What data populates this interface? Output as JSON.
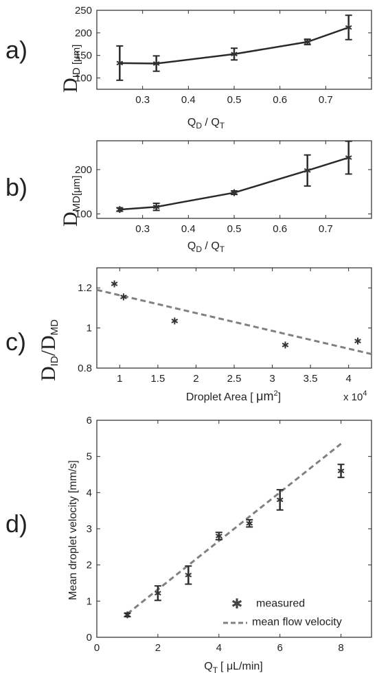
{
  "chart_data": [
    {
      "panel": "a)",
      "type": "line",
      "x": [
        0.25,
        0.33,
        0.5,
        0.66,
        0.75
      ],
      "y": [
        133,
        132,
        153,
        180,
        212
      ],
      "err": [
        38,
        17,
        13,
        6,
        27
      ],
      "xlim": [
        0.2,
        0.8
      ],
      "ylim": [
        75,
        250
      ],
      "xticks": [
        0.3,
        0.4,
        0.5,
        0.6,
        0.7
      ],
      "xtick_labels": [
        "0.3",
        "0.4",
        "0.5",
        "0.6",
        "0.7"
      ],
      "yticks": [
        100,
        150,
        200,
        250
      ],
      "ytick_labels": [
        "100",
        "150",
        "200",
        "250"
      ],
      "xlabel": {
        "q1": "Q",
        "s1": "D",
        "mid": " / ",
        "q2": "Q",
        "s2": "T"
      },
      "ylabel": {
        "main": "D",
        "sub": "ID [μm]"
      },
      "marker": "asterisk"
    },
    {
      "panel": "b)",
      "type": "line",
      "x": [
        0.25,
        0.33,
        0.5,
        0.66,
        0.75
      ],
      "y": [
        110,
        116,
        148,
        198,
        227
      ],
      "err": [
        4,
        8,
        4,
        35,
        37
      ],
      "xlim": [
        0.2,
        0.8
      ],
      "ylim": [
        90,
        265
      ],
      "xticks": [
        0.3,
        0.4,
        0.5,
        0.6,
        0.7
      ],
      "xtick_labels": [
        "0.3",
        "0.4",
        "0.5",
        "0.6",
        "0.7"
      ],
      "yticks": [
        100,
        200
      ],
      "ytick_labels": [
        "100",
        "200"
      ],
      "xlabel": {
        "q1": "Q",
        "s1": "D",
        "mid": " / ",
        "q2": "Q",
        "s2": "T"
      },
      "ylabel": {
        "main": "D",
        "sub": "MD[μm]"
      },
      "marker": "asterisk"
    },
    {
      "panel": "c)",
      "type": "scatter",
      "x": [
        0.93,
        1.05,
        1.72,
        3.17,
        4.12
      ],
      "y": [
        1.22,
        1.155,
        1.035,
        0.915,
        0.935
      ],
      "fit_line": {
        "x": [
          0.7,
          4.3
        ],
        "y": [
          1.19,
          0.87
        ]
      },
      "xlim": [
        0.7,
        4.3
      ],
      "ylim": [
        0.8,
        1.3
      ],
      "xticks": [
        1,
        1.5,
        2,
        2.5,
        3,
        3.5,
        4
      ],
      "xtick_labels": [
        "1",
        "1.5",
        "2",
        "2.5",
        "3",
        "3.5",
        "4"
      ],
      "yticks": [
        0.8,
        1,
        1.2
      ],
      "ytick_labels": [
        "0.8",
        "1",
        "1.2"
      ],
      "xlabel": {
        "text": "Droplet Area [ ",
        "mu": "μm",
        "sup": "2",
        "end": "]"
      },
      "ylabel": {
        "d1": "D",
        "s1": "ID",
        "slash": "/",
        "d2": "D",
        "s2": "MD"
      },
      "exponent_label": {
        "text": "x 10",
        "sup": "4"
      },
      "marker": "asterisk"
    },
    {
      "panel": "d)",
      "type": "scatter",
      "x": [
        1,
        2,
        3,
        4,
        5,
        6,
        8
      ],
      "y": [
        0.62,
        1.22,
        1.72,
        2.8,
        3.15,
        3.8,
        4.6
      ],
      "err": [
        0.05,
        0.2,
        0.25,
        0.1,
        0.1,
        0.28,
        0.18
      ],
      "fit_line": {
        "x": [
          1,
          8
        ],
        "y": [
          0.65,
          5.35
        ]
      },
      "xlim": [
        0,
        9
      ],
      "ylim": [
        0,
        6
      ],
      "xticks": [
        0,
        2,
        4,
        6,
        8
      ],
      "xtick_labels": [
        "0",
        "2",
        "4",
        "6",
        "8"
      ],
      "yticks": [
        0,
        1,
        2,
        3,
        4,
        5,
        6
      ],
      "ytick_labels": [
        "0",
        "1",
        "2",
        "3",
        "4",
        "5",
        "6"
      ],
      "xlabel": {
        "q": "Q",
        "sub": "T",
        "rest": "[ μL/min]"
      },
      "ylabel": "Mean droplet velocity [mm/s]",
      "legend": [
        "measured",
        "mean flow velocity"
      ],
      "legend_position": "lower-right",
      "marker": "asterisk"
    }
  ]
}
